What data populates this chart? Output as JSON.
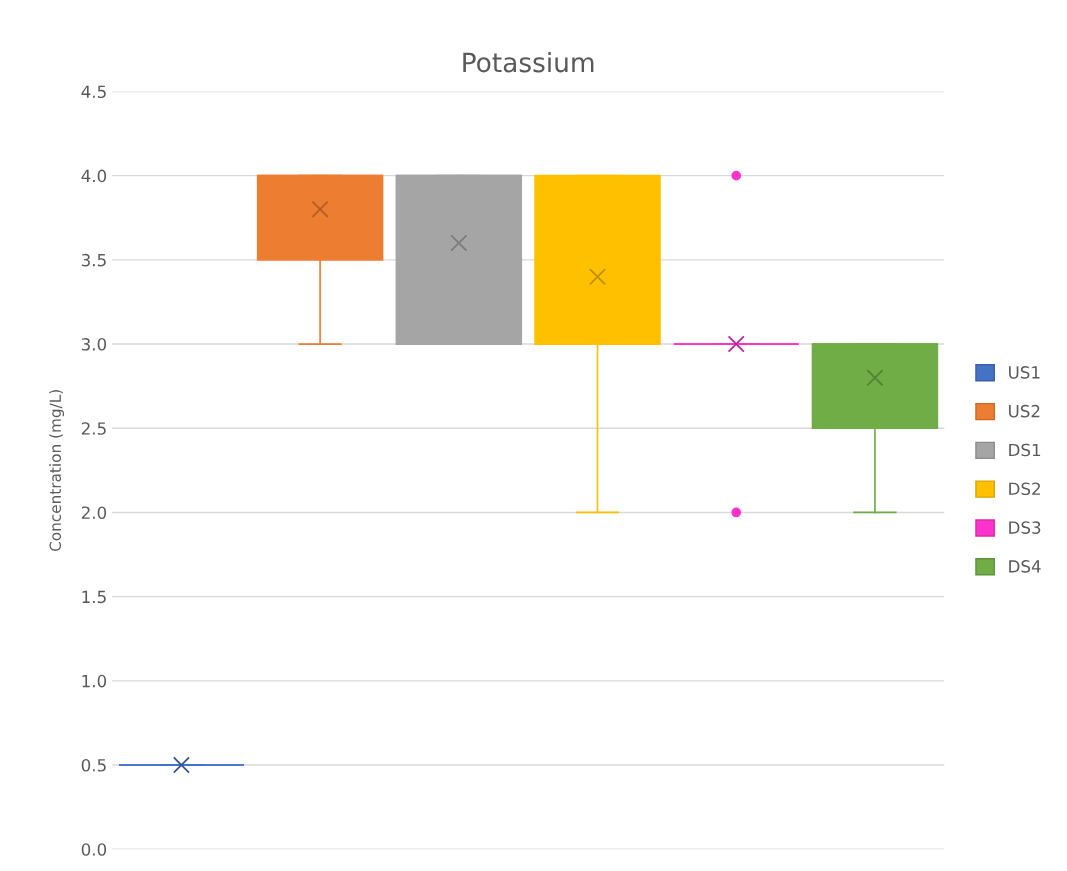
{
  "chart_data": {
    "type": "box",
    "title": "Potassium",
    "ylabel": "Concentration (mg/L)",
    "categories": [
      null
    ],
    "ylim": [
      0,
      4.5
    ],
    "yticks": [
      {
        "value": 0,
        "label": "0.0"
      },
      {
        "value": 0.5,
        "label": "0.5"
      },
      {
        "value": 1,
        "label": "1.0"
      },
      {
        "value": 1.5,
        "label": "1.5"
      },
      {
        "value": 2,
        "label": "2.0"
      },
      {
        "value": 2.5,
        "label": "2.5"
      },
      {
        "value": 3,
        "label": "3.0"
      },
      {
        "value": 3.5,
        "label": "3.5"
      },
      {
        "value": 4,
        "label": "4.0"
      },
      {
        "value": 4.5,
        "label": "4.5"
      }
    ],
    "grid": "y",
    "legend": "right",
    "tick_labels": "y",
    "marker": "cross",
    "series": [
      {
        "name": "US1",
        "color": "#4472c4",
        "boxes": [
          {
            "low": 0.5,
            "q1": 0.5,
            "median": 0.5,
            "q3": 0.5,
            "high": 0.5,
            "mean": 0.5
          }
        ]
      },
      {
        "name": "US2",
        "color": "#ed7d31",
        "boxes": [
          {
            "low": 3.0,
            "q1": 3.5,
            "median": 4.0,
            "q3": 4.0,
            "high": 4.0,
            "mean": 3.8
          }
        ]
      },
      {
        "name": "DS1",
        "color": "#a5a5a5",
        "boxes": [
          {
            "low": 3.0,
            "q1": 3.0,
            "median": 4.0,
            "q3": 4.0,
            "high": 4.0,
            "mean": 3.6
          }
        ]
      },
      {
        "name": "DS2",
        "color": "#ffc000",
        "boxes": [
          {
            "low": 2.0,
            "q1": 3.0,
            "median": 3.5,
            "q3": 4.0,
            "high": 4.0,
            "mean": 3.4
          }
        ]
      },
      {
        "name": "DS3",
        "color": "#ff33cc",
        "boxes": [
          {
            "low": 3.0,
            "q1": 3.0,
            "median": 3.0,
            "q3": 3.0,
            "high": 3.0,
            "mean": 3.0,
            "outliers": [
              4.0,
              2.0
            ]
          }
        ]
      },
      {
        "name": "DS4",
        "color": "#70ad47",
        "boxes": [
          {
            "low": 2.0,
            "q1": 2.5,
            "median": 3.0,
            "q3": 3.0,
            "high": 3.0,
            "mean": 2.8
          }
        ]
      }
    ]
  }
}
